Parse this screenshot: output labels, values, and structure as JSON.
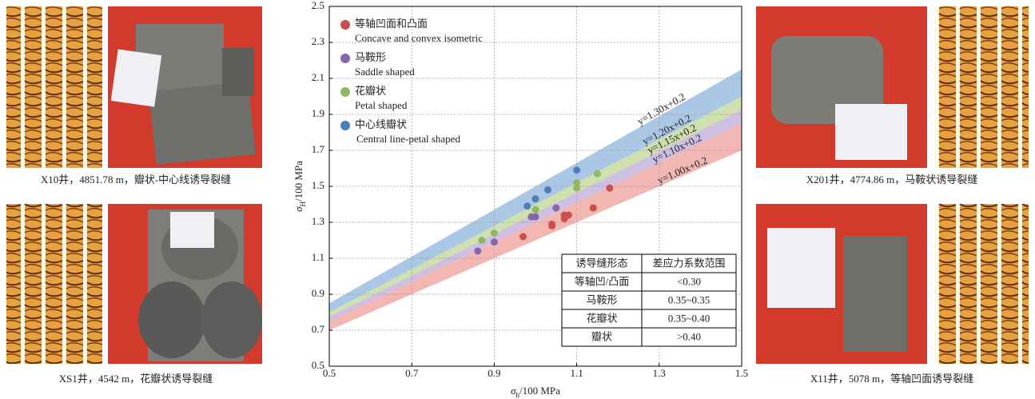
{
  "chart_data": {
    "type": "scatter",
    "xlabel": [
      "σ",
      "h",
      "/100 MPa"
    ],
    "ylabel": [
      "σ",
      "H",
      "/100 MPa"
    ],
    "xlim": [
      0.5,
      1.5
    ],
    "xticks": [
      0.5,
      0.7,
      0.9,
      1.1,
      1.3,
      1.5
    ],
    "ylim": [
      0.5,
      2.5
    ],
    "yticks": [
      0.5,
      0.7,
      0.9,
      1.1,
      1.3,
      1.5,
      1.7,
      1.9,
      2.1,
      2.3,
      2.5
    ],
    "grid": true,
    "lines": [
      {
        "label": "y=1.00x+0.2",
        "slope": 1.0,
        "intercept": 0.2
      },
      {
        "label": "y=1.10x+0.2",
        "slope": 1.1,
        "intercept": 0.2
      },
      {
        "label": "y=1.15x+0.2",
        "slope": 1.15,
        "intercept": 0.2
      },
      {
        "label": "y=1.20x+0.2",
        "slope": 1.2,
        "intercept": 0.2
      },
      {
        "label": "y=1.30x+0.2",
        "slope": 1.3,
        "intercept": 0.2
      }
    ],
    "series": [
      {
        "name": "等轴凹面和凸面",
        "name_en": "Concave and convex isometric",
        "color": "#c9504f",
        "band_color": "#f0a9a6",
        "x": [
          0.97,
          1.04,
          1.04,
          1.07,
          1.07,
          1.08,
          1.14,
          1.14,
          1.18
        ],
        "y": [
          1.22,
          1.29,
          1.28,
          1.34,
          1.32,
          1.34,
          1.38,
          1.38,
          1.49
        ]
      },
      {
        "name": "马鞍形",
        "name_en": "Saddle shaped",
        "color": "#8566a8",
        "band_color": "#c7b4dc",
        "x": [
          0.86,
          0.9,
          0.99,
          1.0,
          1.05
        ],
        "y": [
          1.14,
          1.19,
          1.33,
          1.33,
          1.38
        ]
      },
      {
        "name": "花瓣状",
        "name_en": "Petal shaped",
        "color": "#92b760",
        "band_color": "#c4db9f",
        "x": [
          0.87,
          0.9,
          1.0,
          1.1,
          1.1,
          1.15
        ],
        "y": [
          1.2,
          1.24,
          1.37,
          1.49,
          1.52,
          1.57
        ]
      },
      {
        "name": "中心线瓣状",
        "name_en": "Central line-petal shaped",
        "color": "#4f7dbb",
        "band_color": "#9bbde0",
        "x": [
          0.98,
          1.0,
          1.03,
          1.1
        ],
        "y": [
          1.39,
          1.43,
          1.48,
          1.59
        ]
      }
    ],
    "table": {
      "header": [
        "诱导缝形态",
        "差应力系数范围"
      ],
      "rows": [
        [
          "等轴凹/凸面",
          "<0.30"
        ],
        [
          "马鞍形",
          "0.35~0.35"
        ],
        [
          "花瓣状",
          "0.35~0.40"
        ],
        [
          "瓣状",
          ">0.40"
        ]
      ]
    }
  },
  "panels": [
    {
      "caption": "X10井，4851.78 m，瓣状-中心线诱导裂缝"
    },
    {
      "caption": "XS1井，4542 m，花瓣状诱导裂缝"
    },
    {
      "caption": "X201井，4774.86 m，马鞍状诱导裂缝"
    },
    {
      "caption": "X11井，5078 m，等轴凹面诱导裂缝"
    }
  ]
}
